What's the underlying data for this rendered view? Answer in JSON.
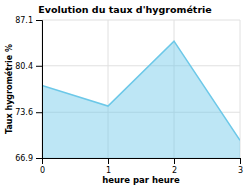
{
  "chart_data": {
    "type": "area",
    "title": "Evolution du taux d'hygrométrie",
    "xlabel": "heure par heure",
    "ylabel": "Taux hygrométrie %",
    "x": [
      0,
      1,
      2,
      3
    ],
    "values": [
      77.5,
      74.5,
      84.0,
      69.5
    ],
    "color": "#6cc8e8",
    "xlim": [
      0,
      3
    ],
    "ylim": [
      66.9,
      87.1
    ],
    "xticks": [
      0,
      1,
      2,
      3
    ],
    "yticks": [
      66.9,
      73.6,
      80.4,
      87.1
    ],
    "grid": true
  }
}
